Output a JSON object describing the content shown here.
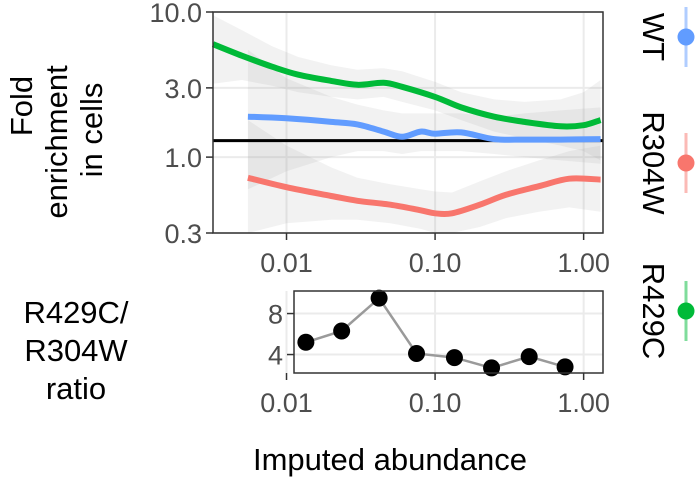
{
  "chart_data": [
    {
      "type": "line",
      "ylabel_lines": [
        "Fold",
        "enrichment",
        "in cells"
      ],
      "xscale": "log",
      "yscale": "log",
      "xlim": [
        0.0032,
        1.35
      ],
      "ylim": [
        0.3,
        10.0
      ],
      "xticks": [
        0.01,
        0.1,
        1.0
      ],
      "xtick_labels": [
        "0.01",
        "0.10",
        "1.00"
      ],
      "yticks": [
        0.3,
        1.0,
        3.0,
        10.0
      ],
      "ytick_labels": [
        "0.3",
        "1.0",
        "3.0",
        "10.0"
      ],
      "grid": true,
      "reference_line": {
        "y": 1.3,
        "color": "#000000"
      },
      "legend": {
        "position": "right",
        "orientation": "vertical",
        "rotated_labels": true
      },
      "series": [
        {
          "name": "WT",
          "color": "#619CFF",
          "x": [
            0.0055,
            0.01,
            0.02,
            0.03,
            0.045,
            0.06,
            0.08,
            0.1,
            0.15,
            0.25,
            0.4,
            0.7,
            1.3
          ],
          "y": [
            1.9,
            1.85,
            1.75,
            1.68,
            1.5,
            1.38,
            1.5,
            1.45,
            1.48,
            1.33,
            1.32,
            1.32,
            1.33
          ],
          "ribbon_lower": [
            0.6,
            0.8,
            1.0,
            1.1,
            1.1,
            1.05,
            1.1,
            1.1,
            1.1,
            1.05,
            1.0,
            0.95,
            0.9
          ],
          "ribbon_upper": [
            5.5,
            3.5,
            2.6,
            2.3,
            2.1,
            2.0,
            2.0,
            2.0,
            2.0,
            1.9,
            2.0,
            2.1,
            2.2
          ]
        },
        {
          "name": "R304W",
          "color": "#F8766D",
          "x": [
            0.0055,
            0.01,
            0.02,
            0.03,
            0.05,
            0.08,
            0.1,
            0.13,
            0.2,
            0.3,
            0.5,
            0.8,
            1.3
          ],
          "y": [
            0.72,
            0.62,
            0.54,
            0.5,
            0.47,
            0.43,
            0.41,
            0.41,
            0.47,
            0.55,
            0.63,
            0.71,
            0.7
          ],
          "ribbon_lower": [
            0.3,
            0.35,
            0.37,
            0.37,
            0.35,
            0.32,
            0.3,
            0.3,
            0.33,
            0.38,
            0.42,
            0.45,
            0.42
          ],
          "ribbon_upper": [
            1.8,
            1.2,
            0.85,
            0.72,
            0.65,
            0.6,
            0.58,
            0.57,
            0.68,
            0.8,
            0.95,
            1.1,
            1.2
          ]
        },
        {
          "name": "R429C",
          "color": "#00BA38",
          "x": [
            0.0032,
            0.005,
            0.008,
            0.012,
            0.02,
            0.03,
            0.045,
            0.06,
            0.1,
            0.15,
            0.25,
            0.4,
            0.7,
            1.0,
            1.3
          ],
          "y": [
            6.0,
            5.0,
            4.2,
            3.7,
            3.35,
            3.15,
            3.25,
            3.05,
            2.6,
            2.2,
            1.9,
            1.75,
            1.63,
            1.66,
            1.8
          ],
          "ribbon_lower": [
            3.2,
            3.4,
            3.1,
            2.8,
            2.6,
            2.5,
            2.6,
            2.4,
            2.1,
            1.8,
            1.5,
            1.35,
            1.2,
            1.1,
            0.95
          ],
          "ribbon_upper": [
            9.5,
            7.5,
            5.8,
            4.9,
            4.3,
            4.0,
            4.1,
            3.9,
            3.3,
            2.8,
            2.5,
            2.4,
            2.5,
            2.8,
            3.4
          ]
        }
      ]
    },
    {
      "type": "line",
      "ylabel_lines": [
        "R429C/",
        "R304W",
        "ratio"
      ],
      "xlabel": "Imputed abundance",
      "xscale": "log",
      "xlim": [
        0.0032,
        1.35
      ],
      "ylim": [
        2.2,
        10.2
      ],
      "yticks": [
        4,
        8
      ],
      "ytick_labels": [
        "4",
        "8"
      ],
      "xticks": [
        0.01,
        0.1,
        1.0
      ],
      "xtick_labels": [
        "0.01",
        "0.10",
        "1.00"
      ],
      "grid": true,
      "series": [
        {
          "color": "#000000",
          "line_color": "#9a9a9a",
          "x": [
            0.0135,
            0.0235,
            0.042,
            0.075,
            0.135,
            0.24,
            0.43,
            0.75
          ],
          "y": [
            5.2,
            6.3,
            9.5,
            4.1,
            3.7,
            2.7,
            3.8,
            2.8
          ]
        }
      ]
    }
  ]
}
